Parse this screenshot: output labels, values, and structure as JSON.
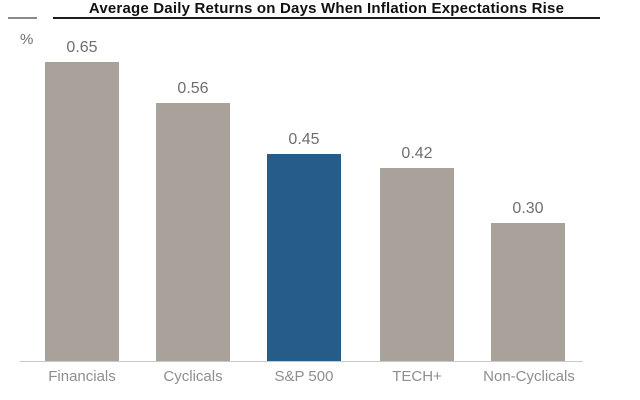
{
  "chart_data": {
    "type": "bar",
    "title": "Average Daily Returns on Days When Inflation Expectations Rise",
    "unit_label": "%",
    "categories": [
      "Financials",
      "Cyclicals",
      "S&P 500",
      "TECH+",
      "Non-Cyclicals"
    ],
    "values": [
      0.65,
      0.56,
      0.45,
      0.42,
      0.3
    ],
    "ylim": [
      0,
      0.78
    ],
    "grid": false,
    "legend": false,
    "highlight_category": "S&P 500",
    "colors": {
      "default_bar": "#a8a29b",
      "highlight_bar": "#255c8a",
      "axis_line": "#c9c9c9",
      "value_label_text": "#6f6f6f",
      "category_label_text": "#8e8e8e",
      "title_text": "#111111"
    },
    "bars": [
      {
        "category": "Financials",
        "value": 0.65,
        "label": "0.65",
        "color": "#a8a29b"
      },
      {
        "category": "Cyclicals",
        "value": 0.56,
        "label": "0.56",
        "color": "#a8a29b"
      },
      {
        "category": "S&P 500",
        "value": 0.45,
        "label": "0.45",
        "color": "#255c8a"
      },
      {
        "category": "TECH+",
        "value": 0.42,
        "label": "0.42",
        "color": "#a8a29b"
      },
      {
        "category": "Non-Cyclicals",
        "value": 0.3,
        "label": "0.30",
        "color": "#a8a29b"
      }
    ]
  }
}
